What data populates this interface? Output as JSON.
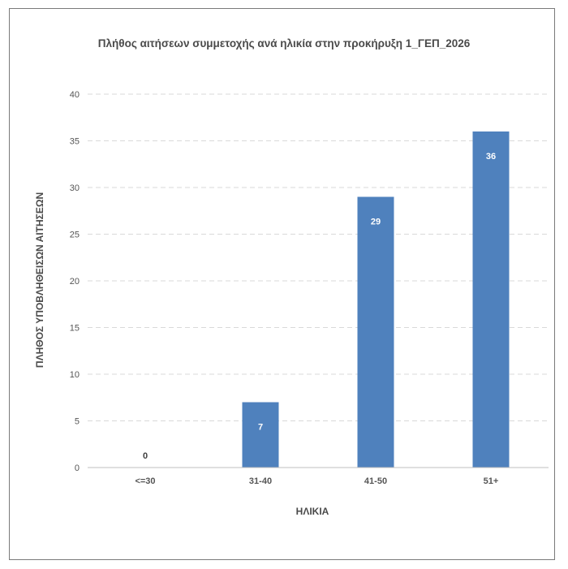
{
  "chart_data": {
    "type": "bar",
    "title": "Πλήθος αιτήσεων συμμετοχής ανά ηλικία στην προκήρυξη 1_ΓΕΠ_2026",
    "xlabel": "ΗΛΙΚΙΑ",
    "ylabel": "ΠΛΗΘΟΣ ΥΠΟΒΛΗΘΕΙΣΩΝ ΑΙΤΗΣΕΩΝ",
    "categories": [
      "<=30",
      "31-40",
      "41-50",
      "51+"
    ],
    "values": [
      0,
      7,
      29,
      36
    ],
    "ylim": [
      0,
      40
    ],
    "yticks": [
      0,
      5,
      10,
      15,
      20,
      25,
      30,
      35,
      40
    ],
    "grid": true,
    "legend": "none",
    "bar_color": "#4f81bd",
    "label_color_inside": "#ffffff",
    "label_color_outside": "#404040"
  }
}
